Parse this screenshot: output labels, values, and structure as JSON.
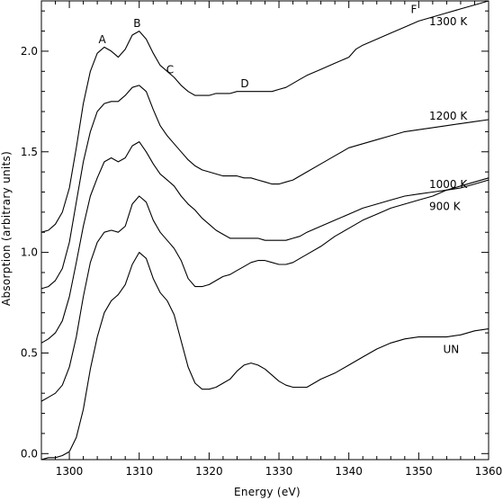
{
  "chart_data": {
    "type": "line",
    "title": "",
    "xlabel": "Energy (eV)",
    "ylabel": "Absorption (arbitrary units)",
    "xlim": [
      1296,
      1360
    ],
    "ylim": [
      -0.03,
      2.25
    ],
    "x_ticks": [
      1300,
      1310,
      1320,
      1330,
      1340,
      1350,
      1360
    ],
    "y_ticks": [
      0.0,
      0.5,
      1.0,
      1.5,
      2.0
    ],
    "x_tick_labels": [
      "1300",
      "1310",
      "1320",
      "1330",
      "1340",
      "1350",
      "1360"
    ],
    "y_tick_labels": [
      "0.0",
      "0.5",
      "1.0",
      "1.5",
      "2.0"
    ],
    "grid": false,
    "series": [
      {
        "name": "UN",
        "label_at": [
          1353.5,
          0.5
        ],
        "points": [
          [
            1296,
            -0.03
          ],
          [
            1297,
            -0.02
          ],
          [
            1298,
            -0.02
          ],
          [
            1299,
            -0.01
          ],
          [
            1300,
            0.01
          ],
          [
            1301,
            0.08
          ],
          [
            1302,
            0.22
          ],
          [
            1303,
            0.42
          ],
          [
            1304,
            0.58
          ],
          [
            1305,
            0.7
          ],
          [
            1306,
            0.76
          ],
          [
            1307,
            0.79
          ],
          [
            1308,
            0.84
          ],
          [
            1309,
            0.94
          ],
          [
            1310,
            1.0
          ],
          [
            1311,
            0.97
          ],
          [
            1312,
            0.87
          ],
          [
            1313,
            0.8
          ],
          [
            1314,
            0.76
          ],
          [
            1315,
            0.69
          ],
          [
            1316,
            0.56
          ],
          [
            1317,
            0.43
          ],
          [
            1318,
            0.35
          ],
          [
            1319,
            0.32
          ],
          [
            1320,
            0.32
          ],
          [
            1321,
            0.33
          ],
          [
            1322,
            0.35
          ],
          [
            1323,
            0.37
          ],
          [
            1324,
            0.41
          ],
          [
            1325,
            0.44
          ],
          [
            1326,
            0.45
          ],
          [
            1327,
            0.44
          ],
          [
            1328,
            0.42
          ],
          [
            1329,
            0.39
          ],
          [
            1330,
            0.36
          ],
          [
            1331,
            0.34
          ],
          [
            1332,
            0.33
          ],
          [
            1333,
            0.33
          ],
          [
            1334,
            0.33
          ],
          [
            1335,
            0.35
          ],
          [
            1336,
            0.37
          ],
          [
            1338,
            0.4
          ],
          [
            1340,
            0.44
          ],
          [
            1342,
            0.48
          ],
          [
            1344,
            0.52
          ],
          [
            1346,
            0.55
          ],
          [
            1348,
            0.57
          ],
          [
            1350,
            0.58
          ],
          [
            1352,
            0.58
          ],
          [
            1354,
            0.58
          ],
          [
            1356,
            0.59
          ],
          [
            1358,
            0.61
          ],
          [
            1360,
            0.62
          ]
        ]
      },
      {
        "name": "900 K",
        "label_at": [
          1351.5,
          1.21
        ],
        "points": [
          [
            1296,
            0.26
          ],
          [
            1297,
            0.28
          ],
          [
            1298,
            0.3
          ],
          [
            1299,
            0.34
          ],
          [
            1300,
            0.43
          ],
          [
            1301,
            0.58
          ],
          [
            1302,
            0.78
          ],
          [
            1303,
            0.95
          ],
          [
            1304,
            1.05
          ],
          [
            1305,
            1.1
          ],
          [
            1306,
            1.11
          ],
          [
            1307,
            1.1
          ],
          [
            1308,
            1.13
          ],
          [
            1309,
            1.24
          ],
          [
            1310,
            1.28
          ],
          [
            1311,
            1.25
          ],
          [
            1312,
            1.16
          ],
          [
            1313,
            1.1
          ],
          [
            1314,
            1.06
          ],
          [
            1315,
            1.02
          ],
          [
            1316,
            0.96
          ],
          [
            1317,
            0.87
          ],
          [
            1318,
            0.83
          ],
          [
            1319,
            0.83
          ],
          [
            1320,
            0.84
          ],
          [
            1321,
            0.86
          ],
          [
            1322,
            0.88
          ],
          [
            1323,
            0.89
          ],
          [
            1324,
            0.91
          ],
          [
            1325,
            0.93
          ],
          [
            1326,
            0.95
          ],
          [
            1327,
            0.96
          ],
          [
            1328,
            0.96
          ],
          [
            1329,
            0.95
          ],
          [
            1330,
            0.94
          ],
          [
            1331,
            0.94
          ],
          [
            1332,
            0.95
          ],
          [
            1333,
            0.97
          ],
          [
            1334,
            0.99
          ],
          [
            1336,
            1.03
          ],
          [
            1338,
            1.08
          ],
          [
            1340,
            1.12
          ],
          [
            1342,
            1.16
          ],
          [
            1344,
            1.19
          ],
          [
            1346,
            1.22
          ],
          [
            1348,
            1.24
          ],
          [
            1350,
            1.26
          ],
          [
            1352,
            1.28
          ],
          [
            1354,
            1.31
          ],
          [
            1356,
            1.33
          ],
          [
            1358,
            1.35
          ],
          [
            1360,
            1.37
          ]
        ]
      },
      {
        "name": "1000 K",
        "label_at": [
          1351.5,
          1.32
        ],
        "points": [
          [
            1296,
            0.55
          ],
          [
            1297,
            0.57
          ],
          [
            1298,
            0.6
          ],
          [
            1299,
            0.66
          ],
          [
            1300,
            0.78
          ],
          [
            1301,
            0.95
          ],
          [
            1302,
            1.13
          ],
          [
            1303,
            1.28
          ],
          [
            1304,
            1.37
          ],
          [
            1305,
            1.45
          ],
          [
            1306,
            1.47
          ],
          [
            1307,
            1.45
          ],
          [
            1308,
            1.47
          ],
          [
            1309,
            1.53
          ],
          [
            1310,
            1.55
          ],
          [
            1311,
            1.5
          ],
          [
            1312,
            1.44
          ],
          [
            1313,
            1.39
          ],
          [
            1314,
            1.36
          ],
          [
            1315,
            1.33
          ],
          [
            1316,
            1.28
          ],
          [
            1317,
            1.24
          ],
          [
            1318,
            1.21
          ],
          [
            1319,
            1.17
          ],
          [
            1320,
            1.14
          ],
          [
            1321,
            1.11
          ],
          [
            1322,
            1.09
          ],
          [
            1323,
            1.07
          ],
          [
            1324,
            1.07
          ],
          [
            1325,
            1.07
          ],
          [
            1326,
            1.07
          ],
          [
            1327,
            1.07
          ],
          [
            1328,
            1.06
          ],
          [
            1329,
            1.06
          ],
          [
            1330,
            1.06
          ],
          [
            1331,
            1.06
          ],
          [
            1332,
            1.07
          ],
          [
            1333,
            1.08
          ],
          [
            1334,
            1.1
          ],
          [
            1336,
            1.13
          ],
          [
            1338,
            1.16
          ],
          [
            1340,
            1.19
          ],
          [
            1342,
            1.22
          ],
          [
            1344,
            1.24
          ],
          [
            1346,
            1.26
          ],
          [
            1348,
            1.28
          ],
          [
            1350,
            1.29
          ],
          [
            1352,
            1.3
          ],
          [
            1354,
            1.31
          ],
          [
            1356,
            1.32
          ],
          [
            1358,
            1.34
          ],
          [
            1360,
            1.36
          ]
        ]
      },
      {
        "name": "1200 K",
        "label_at": [
          1351.5,
          1.66
        ],
        "points": [
          [
            1296,
            0.82
          ],
          [
            1297,
            0.83
          ],
          [
            1298,
            0.86
          ],
          [
            1299,
            0.92
          ],
          [
            1300,
            1.05
          ],
          [
            1301,
            1.25
          ],
          [
            1302,
            1.45
          ],
          [
            1303,
            1.6
          ],
          [
            1304,
            1.7
          ],
          [
            1305,
            1.74
          ],
          [
            1306,
            1.75
          ],
          [
            1307,
            1.75
          ],
          [
            1308,
            1.78
          ],
          [
            1309,
            1.82
          ],
          [
            1310,
            1.83
          ],
          [
            1311,
            1.8
          ],
          [
            1312,
            1.71
          ],
          [
            1313,
            1.63
          ],
          [
            1314,
            1.58
          ],
          [
            1315,
            1.54
          ],
          [
            1316,
            1.5
          ],
          [
            1317,
            1.46
          ],
          [
            1318,
            1.43
          ],
          [
            1319,
            1.41
          ],
          [
            1320,
            1.4
          ],
          [
            1321,
            1.39
          ],
          [
            1322,
            1.38
          ],
          [
            1323,
            1.38
          ],
          [
            1324,
            1.38
          ],
          [
            1325,
            1.37
          ],
          [
            1326,
            1.37
          ],
          [
            1327,
            1.36
          ],
          [
            1328,
            1.35
          ],
          [
            1329,
            1.34
          ],
          [
            1330,
            1.34
          ],
          [
            1331,
            1.35
          ],
          [
            1332,
            1.36
          ],
          [
            1333,
            1.38
          ],
          [
            1334,
            1.4
          ],
          [
            1336,
            1.44
          ],
          [
            1338,
            1.48
          ],
          [
            1340,
            1.52
          ],
          [
            1342,
            1.54
          ],
          [
            1344,
            1.56
          ],
          [
            1346,
            1.58
          ],
          [
            1348,
            1.6
          ],
          [
            1350,
            1.61
          ],
          [
            1352,
            1.62
          ],
          [
            1354,
            1.63
          ],
          [
            1356,
            1.64
          ],
          [
            1358,
            1.65
          ],
          [
            1360,
            1.66
          ]
        ]
      },
      {
        "name": "1300 K",
        "label_at": [
          1351.5,
          2.13
        ],
        "points": [
          [
            1296,
            1.1
          ],
          [
            1297,
            1.11
          ],
          [
            1298,
            1.14
          ],
          [
            1299,
            1.2
          ],
          [
            1300,
            1.32
          ],
          [
            1301,
            1.52
          ],
          [
            1302,
            1.74
          ],
          [
            1303,
            1.9
          ],
          [
            1304,
            1.99
          ],
          [
            1305,
            2.02
          ],
          [
            1306,
            2.0
          ],
          [
            1307,
            1.97
          ],
          [
            1308,
            2.01
          ],
          [
            1309,
            2.08
          ],
          [
            1310,
            2.1
          ],
          [
            1311,
            2.06
          ],
          [
            1312,
            1.99
          ],
          [
            1313,
            1.93
          ],
          [
            1314,
            1.9
          ],
          [
            1315,
            1.87
          ],
          [
            1316,
            1.83
          ],
          [
            1317,
            1.8
          ],
          [
            1318,
            1.78
          ],
          [
            1319,
            1.78
          ],
          [
            1320,
            1.78
          ],
          [
            1321,
            1.79
          ],
          [
            1322,
            1.79
          ],
          [
            1323,
            1.79
          ],
          [
            1324,
            1.8
          ],
          [
            1325,
            1.8
          ],
          [
            1326,
            1.8
          ],
          [
            1327,
            1.8
          ],
          [
            1328,
            1.8
          ],
          [
            1329,
            1.8
          ],
          [
            1330,
            1.81
          ],
          [
            1331,
            1.82
          ],
          [
            1332,
            1.84
          ],
          [
            1333,
            1.86
          ],
          [
            1334,
            1.88
          ],
          [
            1336,
            1.91
          ],
          [
            1338,
            1.94
          ],
          [
            1340,
            1.97
          ],
          [
            1341,
            2.01
          ],
          [
            1342,
            2.03
          ],
          [
            1344,
            2.06
          ],
          [
            1346,
            2.09
          ],
          [
            1348,
            2.12
          ],
          [
            1350,
            2.15
          ],
          [
            1352,
            2.17
          ],
          [
            1354,
            2.19
          ],
          [
            1356,
            2.21
          ],
          [
            1358,
            2.23
          ],
          [
            1360,
            2.25
          ]
        ]
      }
    ],
    "annotations": [
      {
        "text": "A",
        "at": [
          1304.7,
          2.04
        ]
      },
      {
        "text": "B",
        "at": [
          1309.7,
          2.12
        ]
      },
      {
        "text": "C",
        "at": [
          1314.4,
          1.89
        ]
      },
      {
        "text": "D",
        "at": [
          1325.1,
          1.82
        ]
      },
      {
        "text": "F",
        "at": [
          1349.3,
          2.19
        ]
      }
    ]
  }
}
